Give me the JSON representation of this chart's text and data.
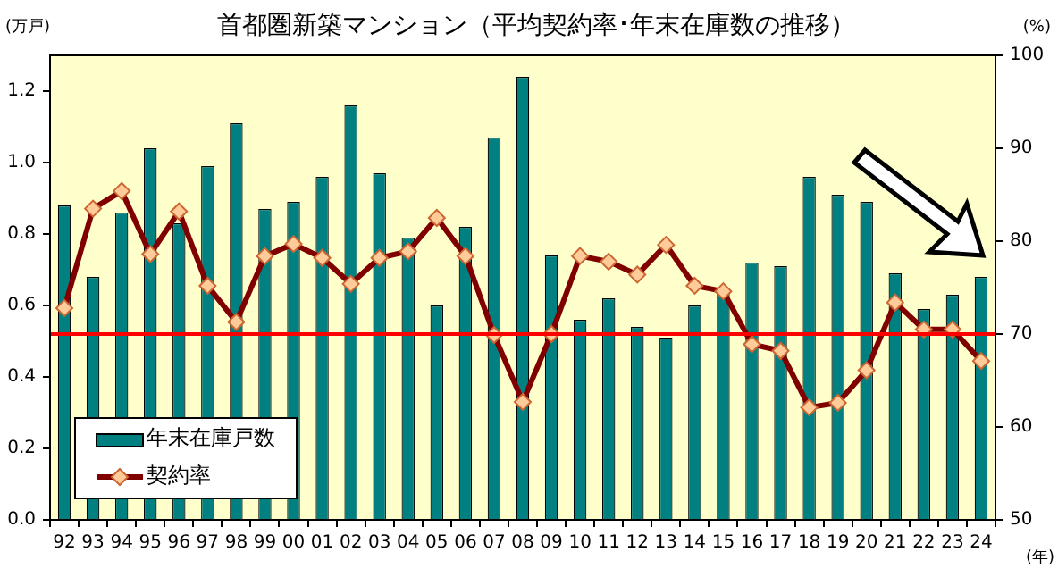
{
  "chart_data": {
    "type": "bar",
    "title": "首都圏新築マンション（平均契約率･年末在庫数の推移）",
    "ylabel": "(万戸)",
    "y2label": "(%)",
    "xlabel": "(年)",
    "categories": [
      "92",
      "93",
      "94",
      "95",
      "96",
      "97",
      "98",
      "99",
      "00",
      "01",
      "02",
      "03",
      "04",
      "05",
      "06",
      "07",
      "08",
      "09",
      "10",
      "11",
      "12",
      "13",
      "14",
      "15",
      "16",
      "17",
      "18",
      "19",
      "20",
      "21",
      "22",
      "23",
      "24"
    ],
    "series": [
      {
        "name": "年末在庫戸数",
        "color": "#008080",
        "values": [
          0.88,
          0.68,
          0.86,
          1.04,
          0.83,
          0.99,
          1.11,
          0.87,
          0.89,
          0.96,
          1.16,
          0.97,
          0.79,
          0.6,
          0.82,
          1.07,
          1.24,
          0.74,
          0.56,
          0.62,
          0.54,
          0.51,
          0.6,
          0.64,
          0.72,
          0.71,
          0.96,
          0.91,
          0.89,
          0.69,
          0.59,
          0.63,
          0.68
        ]
      },
      {
        "name": "契約率",
        "type": "line",
        "axis": "y2",
        "color": "#800000",
        "marker": "diamond",
        "line_style": "solid",
        "values": [
          72.8,
          83.5,
          85.4,
          78.6,
          83.2,
          75.2,
          71.3,
          78.4,
          79.7,
          78.2,
          75.4,
          78.2,
          78.9,
          82.5,
          78.4,
          69.9,
          62.7,
          70.0,
          78.4,
          77.8,
          76.4,
          79.6,
          75.2,
          74.6,
          68.9,
          68.2,
          62.1,
          62.6,
          66.1,
          73.4,
          70.5,
          70.5,
          67.1
        ]
      }
    ],
    "ylim": [
      0,
      1.3
    ],
    "yticks": [
      {
        "value": 0,
        "label": "0.0"
      },
      {
        "value": 0.2,
        "label": "0.2"
      },
      {
        "value": 0.4,
        "label": "0.4"
      },
      {
        "value": 0.6,
        "label": "0.6"
      },
      {
        "value": 0.8,
        "label": "0.8"
      },
      {
        "value": 1.0,
        "label": "1.0"
      },
      {
        "value": 1.2,
        "label": "1.2"
      }
    ],
    "y2lim": [
      50,
      100
    ],
    "y2ticks": [
      50,
      60,
      70,
      80,
      90,
      100
    ],
    "ref_lines": [
      {
        "axis": "y2",
        "value": 70,
        "color": "#ff0000"
      }
    ],
    "legend": "bottom left",
    "grid": false
  }
}
